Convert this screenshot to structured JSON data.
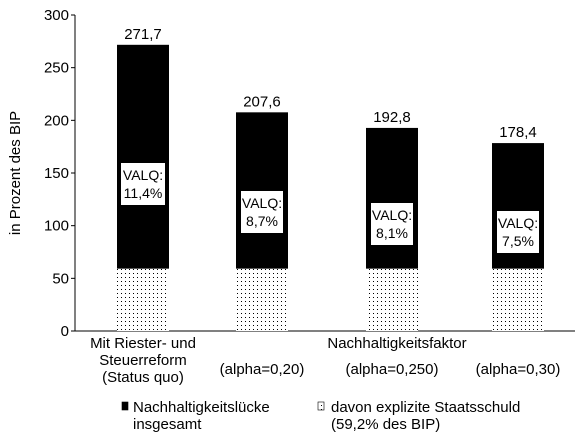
{
  "chart_data": {
    "type": "bar",
    "y_label": "in Prozent des BIP",
    "categories": [
      "Mit Riester- und\nSteuerreform\n(Status quo)",
      "(alpha=0,20)",
      "(alpha=0,250)",
      "(alpha=0,30)"
    ],
    "group_label": "Nachhaltigkeitsfaktor",
    "series": [
      {
        "name": "Nachhaltigkeitslücke\ninsgesamt",
        "color": "#000000",
        "values": [
          271.7,
          207.6,
          192.8,
          178.4
        ],
        "value_labels": [
          "271,7",
          "207,6",
          "192,8",
          "178,4"
        ]
      },
      {
        "name": "davon explizite Staatsschuld\n(59,2% des BIP)",
        "color": "dotted",
        "values": [
          59.2,
          59.2,
          59.2,
          59.2
        ]
      }
    ],
    "annotations": [
      "VALQ:\n11,4%",
      "VALQ:\n8,7%",
      "VALQ:\n8,1%",
      "VALQ:\n7,5%"
    ],
    "ylim": [
      0,
      300
    ],
    "yticks": [
      0,
      50,
      100,
      150,
      200,
      250,
      300
    ]
  }
}
